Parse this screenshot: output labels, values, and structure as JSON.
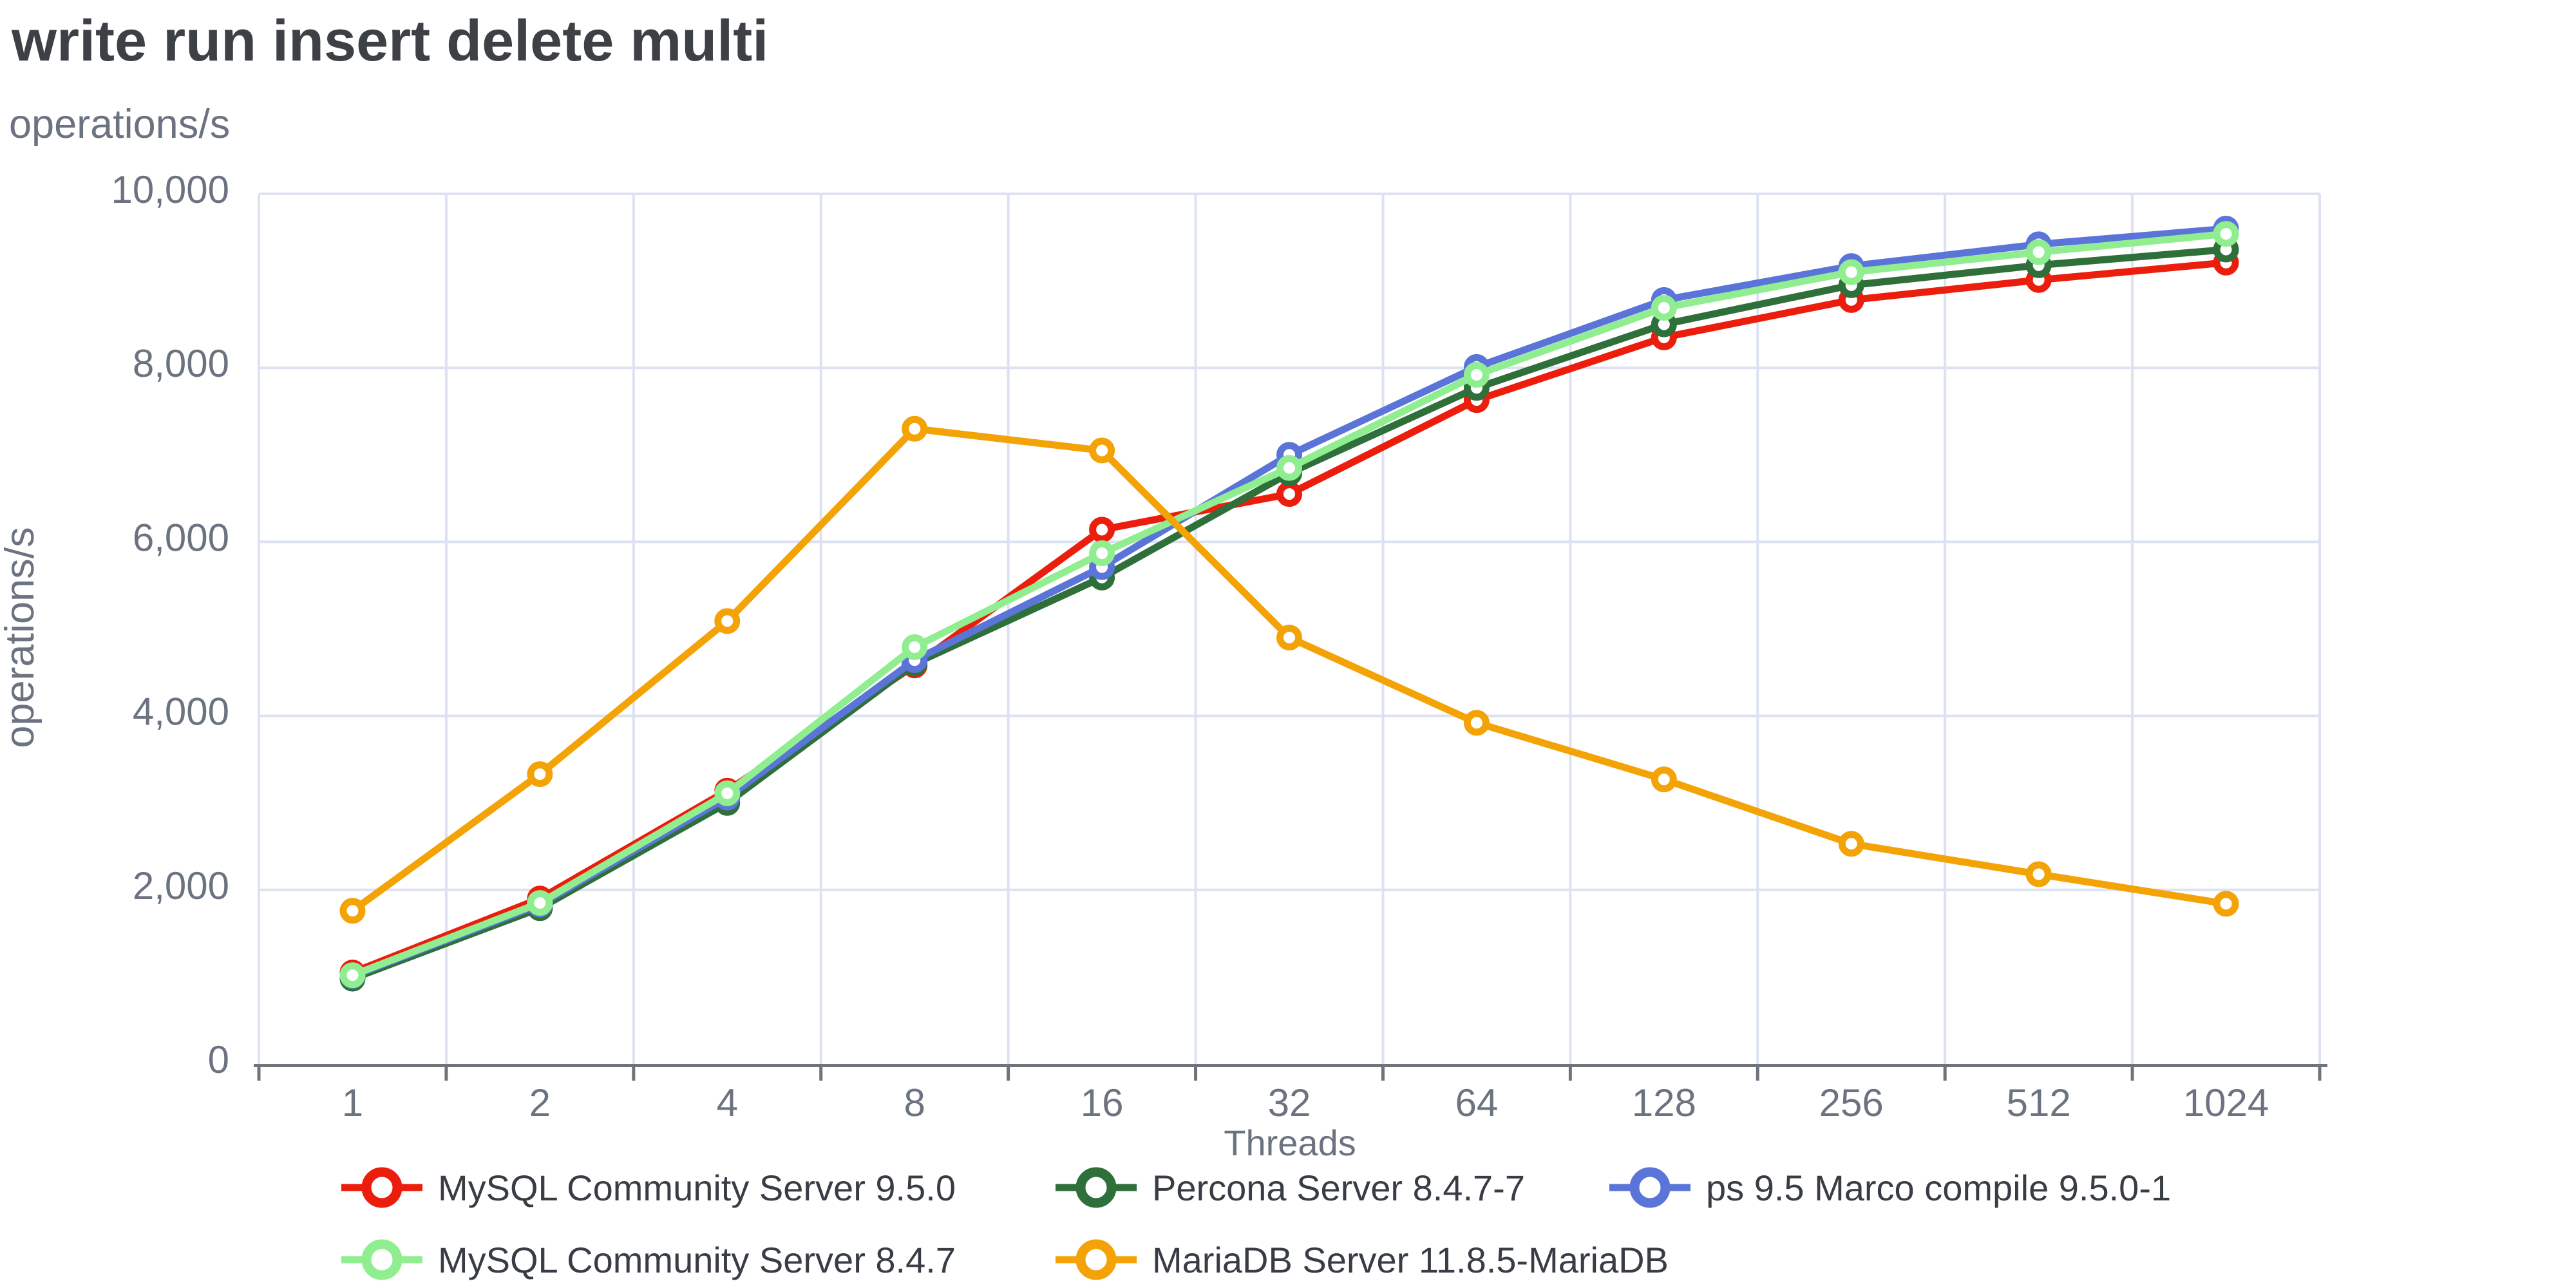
{
  "title": "write run insert delete multi",
  "axes": {
    "y_unit_top": "operations/s",
    "y_title": "operations/s",
    "x_title": "Threads",
    "y_tick_labels": [
      "0",
      "2,000",
      "4,000",
      "6,000",
      "8,000",
      "10,000"
    ],
    "x_tick_labels": [
      "1",
      "2",
      "4",
      "8",
      "16",
      "32",
      "64",
      "128",
      "256",
      "512",
      "1024"
    ]
  },
  "colors": {
    "red": "#eb1e0d",
    "dark_green": "#2e6f3a",
    "blue": "#5b74d8",
    "light_green": "#90ee90",
    "orange": "#f3a306",
    "grid": "#dce2f1",
    "axis": "#6f737b",
    "tick_text": "#6b7280",
    "title_text": "#3d4045",
    "legend_text": "#383c44",
    "background": "#ffffff"
  },
  "chart_data": {
    "type": "line",
    "title": "write run insert delete multi",
    "xlabel": "Threads",
    "ylabel": "operations/s",
    "ylim": [
      0,
      10000
    ],
    "y_ticks": [
      0,
      2000,
      4000,
      6000,
      8000,
      10000
    ],
    "grid": true,
    "legend_position": "bottom",
    "categories": [
      1,
      2,
      4,
      8,
      16,
      32,
      64,
      128,
      256,
      512,
      1024
    ],
    "series": [
      {
        "name": "MySQL Community Server 9.5.0",
        "color_key": "red",
        "values": [
          1050,
          1900,
          3140,
          4580,
          6140,
          6550,
          7630,
          8350,
          8780,
          9010,
          9210
        ]
      },
      {
        "name": "Percona Server 8.4.7-7",
        "color_key": "dark_green",
        "values": [
          980,
          1790,
          3000,
          4600,
          5590,
          6790,
          7770,
          8500,
          8950,
          9180,
          9360
        ]
      },
      {
        "name": "ps 9.5 Marco compile 9.5.0-1",
        "color_key": "blue",
        "values": [
          1010,
          1830,
          3060,
          4640,
          5710,
          7000,
          8010,
          8780,
          9170,
          9420,
          9600
        ]
      },
      {
        "name": "MySQL Community Server 8.4.7",
        "color_key": "light_green",
        "values": [
          1020,
          1850,
          3110,
          4790,
          5870,
          6850,
          7920,
          8690,
          9100,
          9330,
          9540
        ]
      },
      {
        "name": "MariaDB Server 11.8.5-MariaDB",
        "color_key": "orange",
        "values": [
          1760,
          3330,
          5090,
          7300,
          7050,
          4900,
          3920,
          3270,
          2530,
          2180,
          1840
        ]
      }
    ],
    "legend_rows": [
      [
        0,
        1,
        2
      ],
      [
        3,
        4
      ]
    ]
  }
}
